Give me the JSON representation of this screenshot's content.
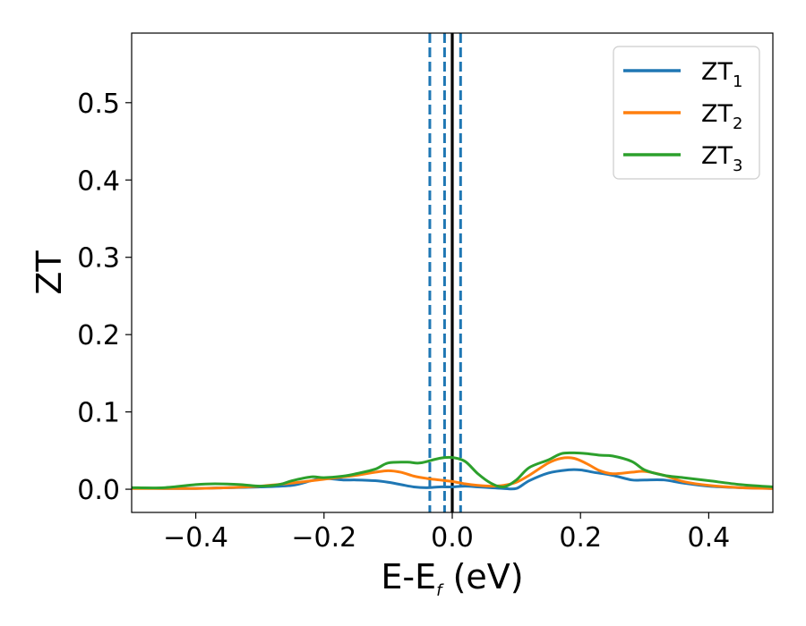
{
  "chart_data": {
    "type": "line",
    "xlabel": "E-E",
    "xlabel_sub": "f",
    "xlabel_unit": " (eV)",
    "ylabel": "ZT",
    "xlim": [
      -0.5,
      0.5
    ],
    "ylim": [
      -0.03,
      0.59
    ],
    "grid": false,
    "legend_position": "top-right",
    "x_ticks": [
      {
        "value": -0.4,
        "label": "−0.4"
      },
      {
        "value": -0.2,
        "label": "−0.2"
      },
      {
        "value": 0.0,
        "label": "0.0"
      },
      {
        "value": 0.2,
        "label": "0.2"
      },
      {
        "value": 0.4,
        "label": "0.4"
      }
    ],
    "y_ticks": [
      {
        "value": 0.0,
        "label": "0.0"
      },
      {
        "value": 0.1,
        "label": "0.1"
      },
      {
        "value": 0.2,
        "label": "0.2"
      },
      {
        "value": 0.3,
        "label": "0.3"
      },
      {
        "value": 0.4,
        "label": "0.4"
      },
      {
        "value": 0.5,
        "label": "0.5"
      }
    ],
    "series": [
      {
        "name": "ZT",
        "sub": "1",
        "color": "#1f77b4",
        "x": [
          -0.5,
          -0.45,
          -0.4,
          -0.35,
          -0.3,
          -0.25,
          -0.22,
          -0.2,
          -0.17,
          -0.15,
          -0.12,
          -0.1,
          -0.08,
          -0.06,
          -0.04,
          -0.02,
          0.0,
          0.02,
          0.04,
          0.06,
          0.08,
          0.1,
          0.12,
          0.15,
          0.18,
          0.2,
          0.22,
          0.25,
          0.28,
          0.3,
          0.33,
          0.36,
          0.4,
          0.45,
          0.5
        ],
        "y": [
          0.002,
          0.001,
          0.001,
          0.002,
          0.003,
          0.005,
          0.011,
          0.014,
          0.012,
          0.012,
          0.011,
          0.009,
          0.006,
          0.003,
          0.002,
          0.003,
          0.003,
          0.004,
          0.003,
          0.002,
          0.001,
          0.001,
          0.011,
          0.021,
          0.025,
          0.025,
          0.022,
          0.018,
          0.012,
          0.012,
          0.012,
          0.008,
          0.004,
          0.002,
          0.001
        ]
      },
      {
        "name": "ZT",
        "sub": "2",
        "color": "#ff7f0e",
        "x": [
          -0.5,
          -0.45,
          -0.4,
          -0.35,
          -0.3,
          -0.25,
          -0.2,
          -0.17,
          -0.15,
          -0.12,
          -0.1,
          -0.08,
          -0.06,
          -0.04,
          -0.02,
          0.0,
          0.02,
          0.04,
          0.06,
          0.08,
          0.1,
          0.12,
          0.15,
          0.17,
          0.19,
          0.21,
          0.23,
          0.25,
          0.28,
          0.3,
          0.33,
          0.36,
          0.4,
          0.45,
          0.5
        ],
        "y": [
          0.001,
          0.001,
          0.001,
          0.002,
          0.004,
          0.008,
          0.013,
          0.016,
          0.018,
          0.022,
          0.024,
          0.022,
          0.017,
          0.014,
          0.012,
          0.01,
          0.007,
          0.005,
          0.004,
          0.005,
          0.009,
          0.018,
          0.034,
          0.04,
          0.04,
          0.033,
          0.024,
          0.02,
          0.022,
          0.023,
          0.018,
          0.01,
          0.005,
          0.002,
          0.001
        ]
      },
      {
        "name": "ZT",
        "sub": "3",
        "color": "#2ca02c",
        "x": [
          -0.5,
          -0.45,
          -0.4,
          -0.37,
          -0.33,
          -0.3,
          -0.27,
          -0.25,
          -0.22,
          -0.2,
          -0.17,
          -0.15,
          -0.12,
          -0.1,
          -0.07,
          -0.05,
          -0.02,
          0.0,
          0.02,
          0.04,
          0.06,
          0.08,
          0.1,
          0.12,
          0.15,
          0.17,
          0.19,
          0.21,
          0.23,
          0.25,
          0.28,
          0.3,
          0.33,
          0.36,
          0.4,
          0.45,
          0.5
        ],
        "y": [
          0.002,
          0.002,
          0.006,
          0.007,
          0.006,
          0.004,
          0.006,
          0.011,
          0.016,
          0.015,
          0.017,
          0.02,
          0.026,
          0.034,
          0.035,
          0.034,
          0.04,
          0.041,
          0.036,
          0.02,
          0.008,
          0.003,
          0.012,
          0.028,
          0.038,
          0.046,
          0.047,
          0.046,
          0.044,
          0.043,
          0.036,
          0.025,
          0.018,
          0.015,
          0.011,
          0.006,
          0.003
        ]
      }
    ],
    "reference_lines": [
      {
        "x": 0.0,
        "color": "#000000",
        "style": "solid"
      },
      {
        "x": -0.035,
        "color": "#1f77b4",
        "style": "dashed"
      },
      {
        "x": -0.012,
        "color": "#1f77b4",
        "style": "dashed"
      },
      {
        "x": 0.013,
        "color": "#1f77b4",
        "style": "dashed"
      }
    ]
  }
}
